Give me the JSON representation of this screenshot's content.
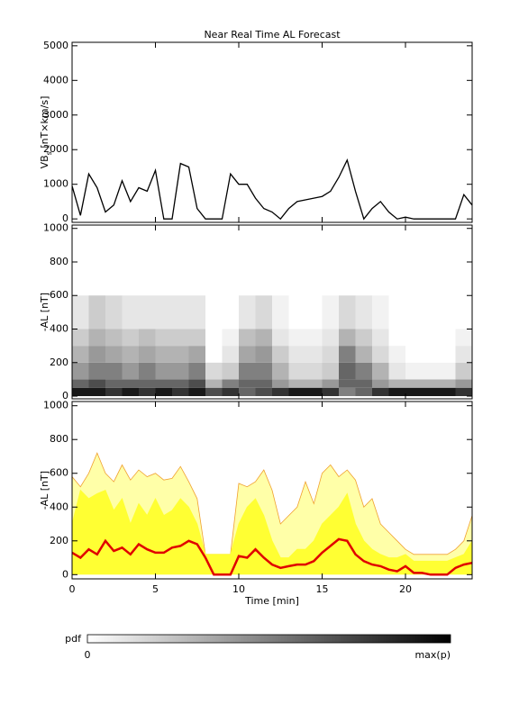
{
  "chart_data": [
    {
      "type": "line",
      "title": "Near Real Time AL Forecast",
      "ylabel": {
        "main": "VB",
        "sub": "s",
        "unit": " [nT×km/s]"
      },
      "x": [
        0,
        0.5,
        1,
        1.5,
        2,
        2.5,
        3,
        3.5,
        4,
        4.5,
        5,
        5.5,
        6,
        6.5,
        7,
        7.5,
        8,
        8.5,
        9,
        9.5,
        10,
        10.5,
        11,
        11.5,
        12,
        12.5,
        13,
        13.5,
        14,
        14.5,
        15,
        15.5,
        16,
        16.5,
        17,
        17.5,
        18,
        18.5,
        19,
        19.5,
        20,
        20.5,
        21,
        21.5,
        22,
        22.5,
        23,
        23.5,
        24
      ],
      "series": [
        {
          "color": "#000000",
          "values": [
            950,
            100,
            1300,
            900,
            200,
            400,
            1100,
            500,
            900,
            800,
            1400,
            0,
            0,
            1600,
            1500,
            300,
            0,
            0,
            0,
            1300,
            1000,
            1000,
            600,
            300,
            200,
            0,
            300,
            500,
            550,
            600,
            650,
            800,
            1200,
            1700,
            800,
            0,
            300,
            500,
            200,
            0,
            50,
            0,
            0,
            0,
            0,
            0,
            0,
            700,
            400
          ]
        }
      ],
      "xlim": [
        0,
        24
      ],
      "xticks": [
        0,
        5,
        10,
        15,
        20
      ],
      "ylim": [
        -100,
        5100
      ],
      "yticks": [
        0,
        1000,
        2000,
        3000,
        4000,
        5000
      ]
    },
    {
      "type": "heatmap",
      "ylabel": "-AL [nT]",
      "x_edges": [
        0,
        1,
        2,
        3,
        4,
        5,
        6,
        7,
        8,
        9,
        10,
        11,
        12,
        13,
        14,
        15,
        16,
        17,
        18,
        19,
        20,
        21,
        22,
        23,
        24
      ],
      "y_edges": [
        0,
        50,
        100,
        200,
        300,
        400,
        600
      ],
      "values": [
        [
          0.9,
          0.9,
          0.8,
          0.9,
          0.8,
          0.9,
          0.8,
          0.9,
          0.7,
          0.8,
          0.6,
          0.7,
          0.8,
          0.9,
          0.9,
          0.8,
          0.5,
          0.6,
          0.8,
          0.9,
          0.9,
          0.9,
          0.9,
          0.8
        ],
        [
          0.6,
          0.7,
          0.6,
          0.6,
          0.6,
          0.6,
          0.6,
          0.7,
          0.3,
          0.5,
          0.6,
          0.6,
          0.4,
          0.3,
          0.3,
          0.4,
          0.6,
          0.6,
          0.4,
          0.3,
          0.3,
          0.3,
          0.3,
          0.4
        ],
        [
          0.4,
          0.5,
          0.5,
          0.4,
          0.5,
          0.4,
          0.4,
          0.5,
          0.15,
          0.2,
          0.5,
          0.5,
          0.3,
          0.15,
          0.15,
          0.2,
          0.6,
          0.5,
          0.3,
          0.1,
          0.05,
          0.05,
          0.05,
          0.2
        ],
        [
          0.3,
          0.4,
          0.35,
          0.3,
          0.35,
          0.3,
          0.3,
          0.35,
          0,
          0.1,
          0.35,
          0.4,
          0.2,
          0.1,
          0.1,
          0.15,
          0.5,
          0.3,
          0.15,
          0.05,
          0,
          0,
          0,
          0.1
        ],
        [
          0.2,
          0.3,
          0.25,
          0.2,
          0.25,
          0.2,
          0.2,
          0.2,
          0,
          0.05,
          0.25,
          0.3,
          0.1,
          0.05,
          0.05,
          0.1,
          0.3,
          0.2,
          0.1,
          0,
          0,
          0,
          0,
          0.05
        ],
        [
          0.1,
          0.2,
          0.15,
          0.1,
          0.1,
          0.1,
          0.1,
          0.1,
          0,
          0,
          0.1,
          0.15,
          0.05,
          0,
          0,
          0.05,
          0.15,
          0.1,
          0.05,
          0,
          0,
          0,
          0,
          0
        ]
      ],
      "colorbar": {
        "label": "pdf",
        "min_label": "0",
        "max_label": "max(p)"
      },
      "xlim": [
        0,
        24
      ],
      "xticks": [
        0,
        5,
        10,
        15,
        20
      ],
      "ylim": [
        -16,
        1020
      ],
      "yticks": [
        0,
        200,
        400,
        600,
        800,
        1000
      ]
    },
    {
      "type": "band",
      "ylabel": "-AL [nT]",
      "xlabel": "Time [min]",
      "x": [
        0,
        0.5,
        1,
        1.5,
        2,
        2.5,
        3,
        3.5,
        4,
        4.5,
        5,
        5.5,
        6,
        6.5,
        7,
        7.5,
        8,
        8.5,
        9,
        9.5,
        10,
        10.5,
        11,
        11.5,
        12,
        12.5,
        13,
        13.5,
        14,
        14.5,
        15,
        15.5,
        16,
        16.5,
        17,
        17.5,
        18,
        18.5,
        19,
        19.5,
        20,
        20.5,
        21,
        21.5,
        22,
        22.5,
        23,
        23.5,
        24
      ],
      "series": [
        {
          "color": "#f0a030",
          "fill": "#ffffa8",
          "values": [
            580,
            520,
            600,
            720,
            600,
            550,
            650,
            560,
            620,
            580,
            600,
            560,
            570,
            640,
            550,
            450,
            120,
            120,
            120,
            120,
            540,
            520,
            550,
            620,
            500,
            300,
            350,
            400,
            550,
            420,
            600,
            650,
            580,
            620,
            560,
            400,
            450,
            300,
            250,
            200,
            150,
            120,
            120,
            120,
            120,
            120,
            150,
            200,
            350
          ]
        },
        {
          "color": "#ffff33",
          "fill": "#ffff33",
          "values": [
            300,
            500,
            450,
            480,
            500,
            380,
            450,
            300,
            420,
            350,
            450,
            350,
            380,
            450,
            400,
            300,
            120,
            120,
            120,
            120,
            300,
            400,
            450,
            350,
            200,
            100,
            100,
            150,
            150,
            200,
            300,
            350,
            400,
            480,
            300,
            200,
            150,
            120,
            100,
            100,
            120,
            80,
            80,
            80,
            80,
            80,
            100,
            120,
            200
          ]
        },
        {
          "color": "#e00000",
          "values": [
            130,
            100,
            150,
            120,
            200,
            140,
            160,
            120,
            180,
            150,
            130,
            130,
            160,
            170,
            200,
            180,
            100,
            0,
            0,
            0,
            110,
            100,
            150,
            100,
            60,
            40,
            50,
            60,
            60,
            80,
            130,
            170,
            210,
            200,
            120,
            80,
            60,
            50,
            30,
            20,
            50,
            10,
            10,
            0,
            0,
            0,
            40,
            60,
            70
          ]
        }
      ],
      "xlim": [
        0,
        24
      ],
      "xticks": [
        0,
        5,
        10,
        15,
        20
      ],
      "ylim": [
        -25,
        1025
      ],
      "yticks": [
        0,
        200,
        400,
        600,
        800,
        1000
      ]
    }
  ]
}
